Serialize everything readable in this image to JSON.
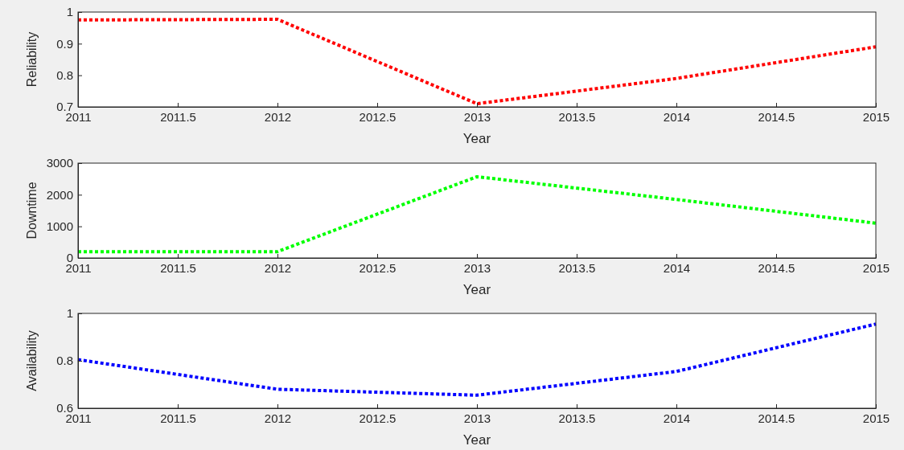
{
  "chart_data": [
    {
      "type": "line",
      "xlabel": "Year",
      "ylabel": "Reliability",
      "x": [
        2011,
        2012,
        2013,
        2014,
        2015
      ],
      "series": [
        {
          "color": "#ff0000",
          "values": [
            0.975,
            0.977,
            0.71,
            0.79,
            0.89
          ]
        }
      ],
      "xlim": [
        2011,
        2015
      ],
      "xticks": [
        2011,
        2011.5,
        2012,
        2012.5,
        2013,
        2013.5,
        2014,
        2014.5,
        2015
      ],
      "ylim": [
        0.7,
        1
      ],
      "yticks": [
        0.7,
        0.8,
        0.9,
        1
      ],
      "line_style": "dotted",
      "grid": false
    },
    {
      "type": "line",
      "xlabel": "Year",
      "ylabel": "Downtime",
      "x": [
        2011,
        2012,
        2013,
        2014,
        2015
      ],
      "series": [
        {
          "color": "#00ff00",
          "values": [
            200,
            200,
            2570,
            1850,
            1100
          ]
        }
      ],
      "xlim": [
        2011,
        2015
      ],
      "xticks": [
        2011,
        2011.5,
        2012,
        2012.5,
        2013,
        2013.5,
        2014,
        2014.5,
        2015
      ],
      "ylim": [
        0,
        3000
      ],
      "yticks": [
        0,
        1000,
        2000,
        3000
      ],
      "line_style": "dotted",
      "grid": false
    },
    {
      "type": "line",
      "xlabel": "Year",
      "ylabel": "Availability",
      "x": [
        2011,
        2012,
        2013,
        2014,
        2015
      ],
      "series": [
        {
          "color": "#0000ff",
          "values": [
            0.805,
            0.68,
            0.655,
            0.755,
            0.955
          ]
        }
      ],
      "xlim": [
        2011,
        2015
      ],
      "xticks": [
        2011,
        2011.5,
        2012,
        2012.5,
        2013,
        2013.5,
        2014,
        2014.5,
        2015
      ],
      "ylim": [
        0.6,
        1
      ],
      "yticks": [
        0.6,
        0.8,
        1
      ],
      "line_style": "dotted",
      "grid": false
    }
  ]
}
